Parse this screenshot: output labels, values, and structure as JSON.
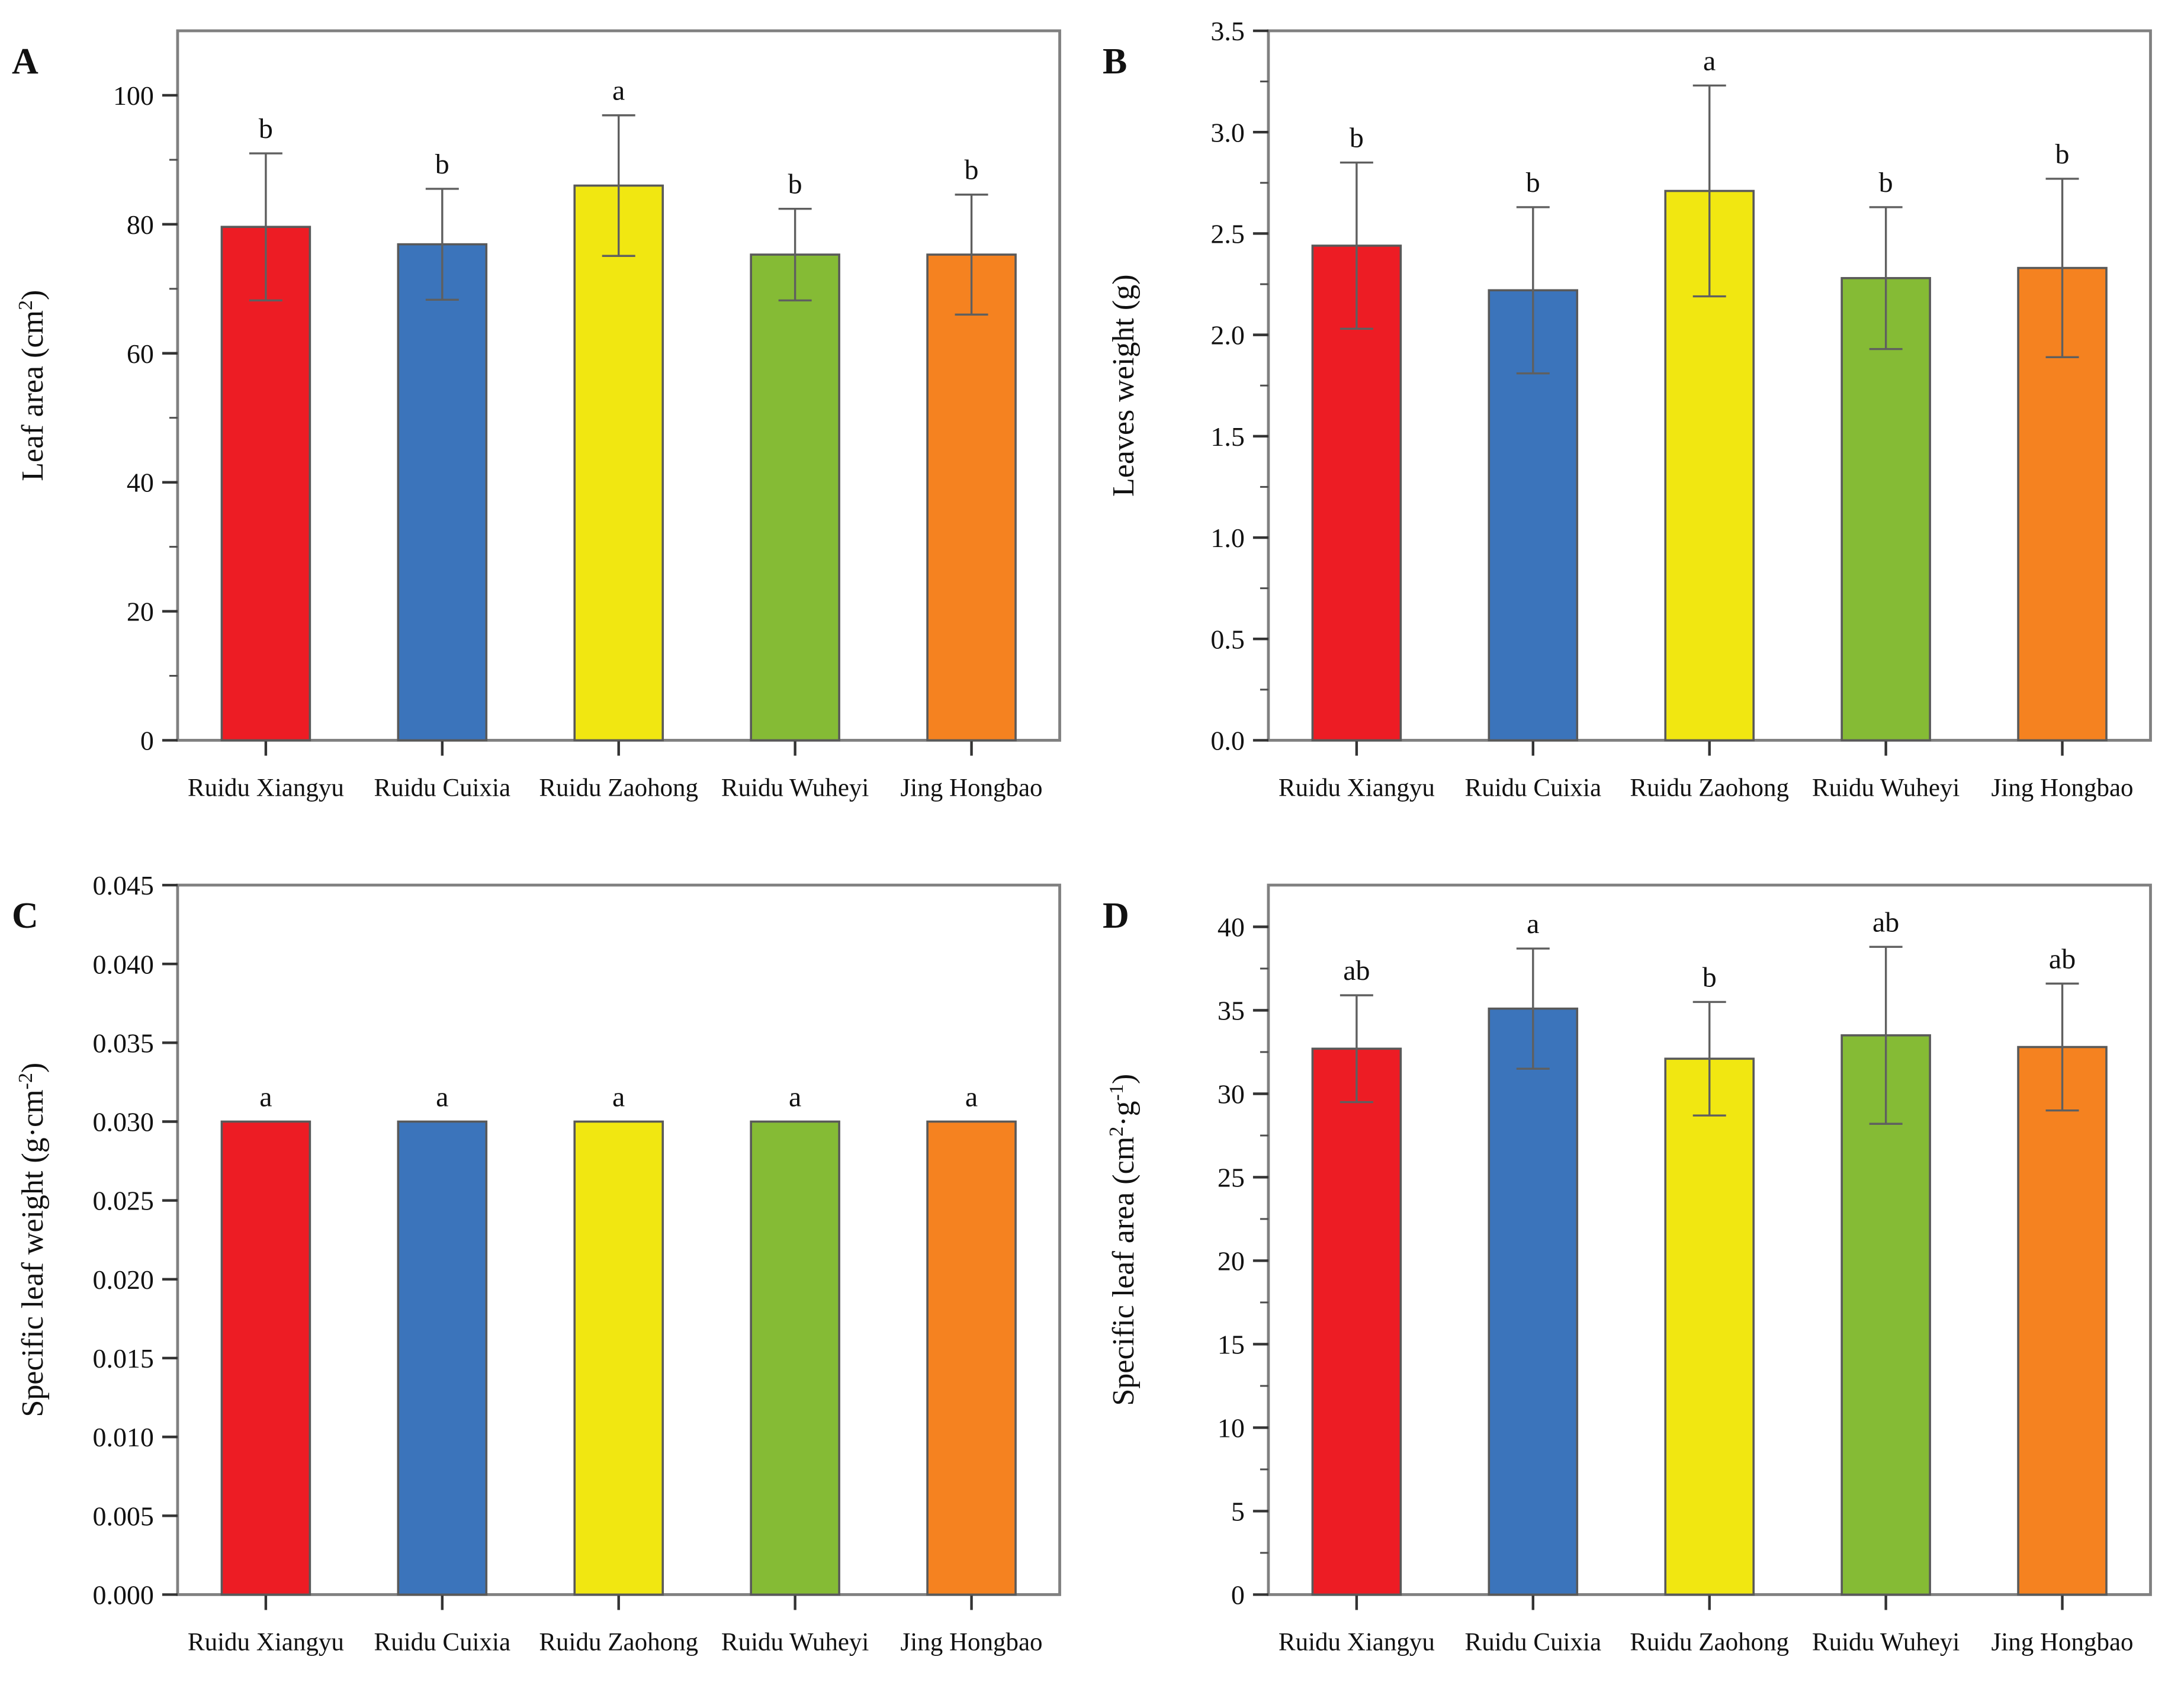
{
  "figure": {
    "background": "#ffffff",
    "panel_count": 4
  },
  "colors": {
    "bar_fill": [
      "#ed1c24",
      "#3b74bb",
      "#f1e711",
      "#85bb35",
      "#f58220"
    ],
    "bar_edge": "#595959",
    "error_bar": "#5f5f5f",
    "frame": "#808080",
    "tick": "#333333",
    "text": "#111111"
  },
  "categories": [
    "Ruidu Xiangyu",
    "Ruidu Cuixia",
    "Ruidu Zaohong",
    "Ruidu Wuheyi",
    "Jing Hongbao"
  ],
  "chart_data": [
    {
      "panel_label": "A",
      "type": "bar",
      "title": "",
      "xlabel": "",
      "ylabel": "Leaf area (cm²)",
      "categories": [
        "Ruidu Xiangyu",
        "Ruidu Cuixia",
        "Ruidu Zaohong",
        "Ruidu Wuheyi",
        "Jing Hongbao"
      ],
      "values": [
        79.6,
        76.9,
        86.0,
        75.3,
        75.3
      ],
      "errors": [
        11.4,
        8.6,
        10.9,
        7.1,
        9.3
      ],
      "sig_letters": [
        "b",
        "b",
        "a",
        "b",
        "b"
      ],
      "ylim": [
        0,
        110
      ],
      "ytick_labels": [
        "0",
        "20",
        "40",
        "60",
        "80",
        "100"
      ],
      "minor_ticks": true,
      "grid": false,
      "legend": "none"
    },
    {
      "panel_label": "B",
      "type": "bar",
      "title": "",
      "xlabel": "",
      "ylabel": "Leaves weight (g)",
      "categories": [
        "Ruidu Xiangyu",
        "Ruidu Cuixia",
        "Ruidu Zaohong",
        "Ruidu Wuheyi",
        "Jing Hongbao"
      ],
      "values": [
        2.44,
        2.22,
        2.71,
        2.28,
        2.33
      ],
      "errors": [
        0.41,
        0.41,
        0.52,
        0.35,
        0.44
      ],
      "sig_letters": [
        "b",
        "b",
        "a",
        "b",
        "b"
      ],
      "ylim": [
        0,
        3.5
      ],
      "ytick_labels": [
        "0.0",
        "0.5",
        "1.0",
        "1.5",
        "2.0",
        "2.5",
        "3.0",
        "3.5"
      ],
      "minor_ticks": true,
      "grid": false,
      "legend": "none"
    },
    {
      "panel_label": "C",
      "type": "bar",
      "title": "",
      "xlabel": "",
      "ylabel": "Specific leaf weight (g·cm⁻²)",
      "categories": [
        "Ruidu Xiangyu",
        "Ruidu Cuixia",
        "Ruidu Zaohong",
        "Ruidu Wuheyi",
        "Jing Hongbao"
      ],
      "values": [
        0.03,
        0.03,
        0.03,
        0.03,
        0.03
      ],
      "errors": [
        0,
        0,
        0,
        0,
        0
      ],
      "sig_letters": [
        "a",
        "a",
        "a",
        "a",
        "a"
      ],
      "ylim": [
        0,
        0.045
      ],
      "ytick_labels": [
        "0.000",
        "0.005",
        "0.010",
        "0.015",
        "0.020",
        "0.025",
        "0.030",
        "0.035",
        "0.040",
        "0.045"
      ],
      "minor_ticks": false,
      "grid": false,
      "legend": "none"
    },
    {
      "panel_label": "D",
      "type": "bar",
      "title": "",
      "xlabel": "",
      "ylabel": "Specific leaf area (cm²·g⁻¹)",
      "categories": [
        "Ruidu Xiangyu",
        "Ruidu Cuixia",
        "Ruidu Zaohong",
        "Ruidu Wuheyi",
        "Jing Hongbao"
      ],
      "values": [
        32.7,
        35.1,
        32.1,
        33.5,
        32.8
      ],
      "errors": [
        3.2,
        3.6,
        3.4,
        5.3,
        3.8
      ],
      "sig_letters": [
        "ab",
        "a",
        "b",
        "ab",
        "ab"
      ],
      "ylim": [
        0,
        42.5
      ],
      "ytick_labels": [
        "0",
        "5",
        "10",
        "15",
        "20",
        "25",
        "30",
        "35",
        "40"
      ],
      "minor_ticks": true,
      "grid": false,
      "legend": "none"
    }
  ]
}
